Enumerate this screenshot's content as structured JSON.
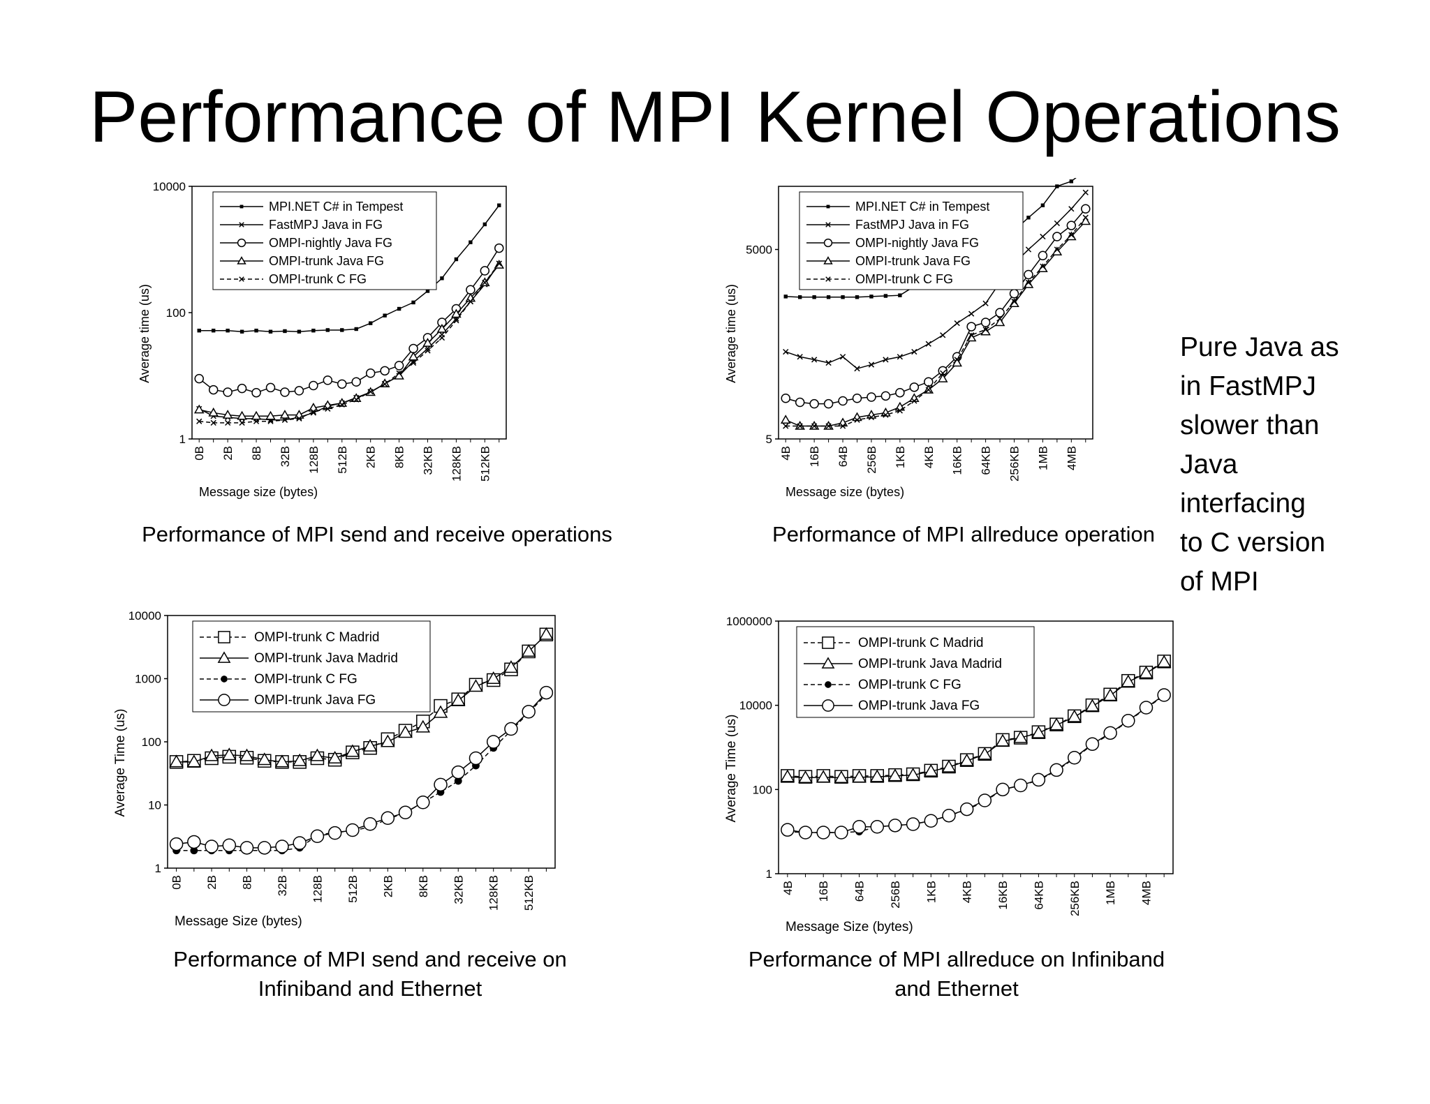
{
  "slide": {
    "title": "Performance of MPI Kernel Operations",
    "side_note": [
      "Pure Java as",
      "in FastMPJ",
      "slower than",
      "Java",
      "interfacing",
      "to C version",
      "of MPI"
    ]
  },
  "chart_data": [
    {
      "id": "c1",
      "type": "line",
      "caption": [
        "Performance of MPI send and receive operations"
      ],
      "xlabel": "Message size (bytes)",
      "ylabel": "Average time (us)",
      "y_scale": "log",
      "ylim": [
        1,
        10000
      ],
      "y_ticks": [
        1,
        100,
        10000
      ],
      "y_tick_labels": [
        "1",
        "100",
        "10000"
      ],
      "x": [
        "0B",
        "1B",
        "2B",
        "4B",
        "8B",
        "16B",
        "32B",
        "64B",
        "128B",
        "256B",
        "512B",
        "1KB",
        "2KB",
        "4KB",
        "8KB",
        "16KB",
        "32KB",
        "64KB",
        "128KB",
        "256KB",
        "512KB",
        "1MB"
      ],
      "x_tick_labels": [
        "0B",
        "2B",
        "8B",
        "32B",
        "128B",
        "512B",
        "2KB",
        "8KB",
        "32KB",
        "128KB",
        "512KB"
      ],
      "legend_position": "top-left",
      "series": [
        {
          "name": "MPI.NET C# in Tempest",
          "marker": "square-filled",
          "dash": "solid",
          "values": [
            52,
            52,
            52,
            50,
            52,
            50,
            51,
            50,
            52,
            53,
            53,
            55,
            68,
            90,
            115,
            145,
            220,
            350,
            700,
            1300,
            2500,
            5000
          ]
        },
        {
          "name": "FastMPJ Java in FG",
          "marker": "x",
          "dash": "solid",
          "values": [
            3,
            2.3,
            2.2,
            2.1,
            2.1,
            2,
            2,
            2.2,
            2.6,
            3.3,
            3.7,
            4.5,
            5.5,
            7.5,
            10,
            17,
            27,
            45,
            80,
            150,
            280,
            600
          ]
        },
        {
          "name": "OMPI-nightly Java FG",
          "marker": "circle-open",
          "dash": "solid",
          "values": [
            9,
            6,
            5.5,
            6.3,
            5.4,
            6.5,
            5.5,
            5.8,
            7,
            8.5,
            7.4,
            8,
            11,
            12,
            14.5,
            27,
            40,
            70,
            115,
            230,
            460,
            1050
          ]
        },
        {
          "name": "OMPI-trunk Java FG",
          "marker": "triangle-open",
          "dash": "solid",
          "values": [
            2.9,
            2.6,
            2.4,
            2.3,
            2.3,
            2.3,
            2.4,
            2.4,
            3.1,
            3.4,
            3.7,
            4.4,
            5.5,
            7.5,
            10,
            20,
            33,
            55,
            95,
            170,
            300,
            570
          ]
        },
        {
          "name": "OMPI-trunk C FG",
          "marker": "x",
          "dash": "dashed",
          "values": [
            1.9,
            1.8,
            1.8,
            1.8,
            1.9,
            1.9,
            2,
            2.1,
            2.7,
            3,
            3.5,
            4.2,
            5.6,
            7.4,
            11,
            16,
            25,
            40,
            75,
            150,
            300,
            600
          ]
        }
      ]
    },
    {
      "id": "c2",
      "type": "line",
      "caption": [
        "Performance of MPI allreduce operation"
      ],
      "xlabel": "Message size (bytes)",
      "ylabel": "Average time (us)",
      "y_scale": "log",
      "ylim": [
        5,
        50000
      ],
      "y_ticks": [
        5,
        5000
      ],
      "y_tick_labels": [
        "5",
        "5000"
      ],
      "x": [
        "4B",
        "8B",
        "16B",
        "32B",
        "64B",
        "128B",
        "256B",
        "512B",
        "1KB",
        "2KB",
        "4KB",
        "8KB",
        "16KB",
        "32KB",
        "64KB",
        "128KB",
        "256KB",
        "512KB",
        "1MB",
        "2MB",
        "4MB",
        "8MB"
      ],
      "x_tick_labels": [
        "4B",
        "16B",
        "64B",
        "256B",
        "1KB",
        "4KB",
        "16KB",
        "64KB",
        "256KB",
        "1MB",
        "4MB"
      ],
      "legend_position": "top-left",
      "series": [
        {
          "name": "MPI.NET C# in Tempest",
          "marker": "square-filled",
          "dash": "solid",
          "values": [
            900,
            880,
            880,
            880,
            880,
            880,
            900,
            920,
            940,
            1300,
            1800,
            2100,
            2500,
            3200,
            4500,
            6500,
            10000,
            16000,
            25000,
            50000,
            60000,
            90000
          ]
        },
        {
          "name": "FastMPJ Java in FG",
          "marker": "x",
          "dash": "solid",
          "values": [
            120,
            100,
            90,
            80,
            100,
            65,
            75,
            90,
            100,
            120,
            160,
            220,
            340,
            480,
            700,
            1500,
            3000,
            5000,
            8000,
            13000,
            22000,
            40000
          ]
        },
        {
          "name": "OMPI-nightly Java FG",
          "marker": "circle-open",
          "dash": "solid",
          "values": [
            22,
            19,
            18,
            18,
            20,
            22,
            23,
            24,
            27,
            33,
            40,
            60,
            100,
            300,
            350,
            500,
            1000,
            2000,
            4000,
            8000,
            12000,
            22000
          ]
        },
        {
          "name": "OMPI-trunk Java FG",
          "marker": "triangle-open",
          "dash": "solid",
          "values": [
            10,
            8,
            8,
            8,
            9,
            11,
            12,
            13,
            16,
            22,
            30,
            45,
            80,
            200,
            250,
            350,
            700,
            1400,
            2500,
            4600,
            8000,
            14000
          ]
        },
        {
          "name": "OMPI-trunk C FG",
          "marker": "x",
          "dash": "dashed",
          "values": [
            8,
            8,
            8,
            8,
            8,
            10,
            11,
            12,
            14,
            20,
            30,
            55,
            90,
            220,
            270,
            400,
            750,
            1500,
            2700,
            5000,
            8500,
            16000
          ]
        }
      ]
    },
    {
      "id": "c3",
      "type": "line",
      "caption": [
        "Performance of MPI send and receive on",
        "Infiniband and Ethernet"
      ],
      "xlabel": "Message Size (bytes)",
      "ylabel": "Average Time (us)",
      "y_scale": "log",
      "ylim": [
        1,
        10000
      ],
      "y_ticks": [
        1,
        10,
        100,
        1000,
        10000
      ],
      "y_tick_labels": [
        "1",
        "10",
        "100",
        "1000",
        "10000"
      ],
      "x": [
        "0B",
        "1B",
        "2B",
        "4B",
        "8B",
        "16B",
        "32B",
        "64B",
        "128B",
        "256B",
        "512B",
        "1KB",
        "2KB",
        "4KB",
        "8KB",
        "16KB",
        "32KB",
        "64KB",
        "128KB",
        "256KB",
        "512KB",
        "1MB"
      ],
      "x_tick_labels": [
        "0B",
        "2B",
        "8B",
        "32B",
        "128B",
        "512B",
        "2KB",
        "8KB",
        "32KB",
        "128KB",
        "512KB"
      ],
      "legend_position": "top-left",
      "series": [
        {
          "name": "OMPI-trunk C Madrid",
          "marker": "square-open",
          "dash": "dashed",
          "values": [
            48,
            50,
            55,
            58,
            56,
            50,
            48,
            48,
            55,
            52,
            68,
            80,
            110,
            150,
            210,
            370,
            470,
            800,
            950,
            1400,
            2700,
            5000
          ]
        },
        {
          "name": "OMPI-trunk Java Madrid",
          "marker": "triangle-open",
          "dash": "solid",
          "values": [
            48,
            48,
            60,
            62,
            60,
            52,
            48,
            50,
            60,
            55,
            70,
            85,
            100,
            140,
            170,
            290,
            450,
            750,
            1000,
            1500,
            2700,
            5000
          ]
        },
        {
          "name": "OMPI-trunk C FG",
          "marker": "circle-filled",
          "dash": "dashed",
          "values": [
            1.9,
            1.9,
            1.9,
            1.9,
            1.9,
            1.9,
            1.9,
            2.1,
            3.3,
            3.7,
            3.9,
            4.5,
            6,
            7.5,
            11,
            16,
            24,
            42,
            80,
            150,
            290,
            560
          ]
        },
        {
          "name": "OMPI-trunk Java FG",
          "marker": "circle-open",
          "dash": "solid",
          "values": [
            2.4,
            2.6,
            2.2,
            2.3,
            2.1,
            2.1,
            2.2,
            2.5,
            3.2,
            3.6,
            4,
            5,
            6.2,
            7.6,
            11,
            21,
            33,
            55,
            100,
            160,
            300,
            600
          ]
        }
      ]
    },
    {
      "id": "c4",
      "type": "line",
      "caption": [
        "Performance of MPI allreduce on Infiniband",
        "and Ethernet"
      ],
      "xlabel": "Message Size (bytes)",
      "ylabel": "Average Time (us)",
      "y_scale": "log",
      "ylim": [
        1,
        1000000
      ],
      "y_ticks": [
        1,
        100,
        10000,
        1000000
      ],
      "y_tick_labels": [
        "1",
        "100",
        "10000",
        "1000000"
      ],
      "x": [
        "4B",
        "8B",
        "16B",
        "32B",
        "64B",
        "128B",
        "256B",
        "512B",
        "1KB",
        "2KB",
        "4KB",
        "8KB",
        "16KB",
        "32KB",
        "64KB",
        "128KB",
        "256KB",
        "512KB",
        "1MB",
        "2MB",
        "4MB",
        "8MB"
      ],
      "x_tick_labels": [
        "4B",
        "16B",
        "64B",
        "256B",
        "1KB",
        "4KB",
        "16KB",
        "64KB",
        "256KB",
        "1MB",
        "4MB"
      ],
      "legend_position": "top-left",
      "series": [
        {
          "name": "OMPI-trunk C Madrid",
          "marker": "square-open",
          "dash": "dashed",
          "values": [
            210,
            200,
            210,
            200,
            210,
            210,
            220,
            230,
            280,
            350,
            500,
            700,
            1500,
            1700,
            2300,
            3500,
            5500,
            10000,
            18000,
            38000,
            60000,
            110000
          ]
        },
        {
          "name": "OMPI-trunk Java Madrid",
          "marker": "triangle-open",
          "dash": "solid",
          "values": [
            200,
            190,
            195,
            190,
            195,
            200,
            210,
            220,
            270,
            340,
            480,
            680,
            1400,
            1700,
            2200,
            3400,
            5300,
            9500,
            17000,
            36000,
            58000,
            105000
          ]
        },
        {
          "name": "OMPI-trunk C FG",
          "marker": "circle-filled",
          "dash": "dashed",
          "values": [
            10,
            9.5,
            9.5,
            9.5,
            10,
            13,
            14,
            15,
            18,
            24,
            33,
            52,
            100,
            125,
            165,
            280,
            550,
            1150,
            2100,
            4200,
            8500,
            17000
          ]
        },
        {
          "name": "OMPI-trunk Java FG",
          "marker": "circle-open",
          "dash": "solid",
          "values": [
            11,
            9.5,
            9.5,
            9.5,
            13,
            13,
            14,
            15,
            18,
            24,
            34,
            55,
            100,
            125,
            170,
            290,
            570,
            1200,
            2200,
            4300,
            8800,
            17500
          ]
        }
      ]
    }
  ]
}
